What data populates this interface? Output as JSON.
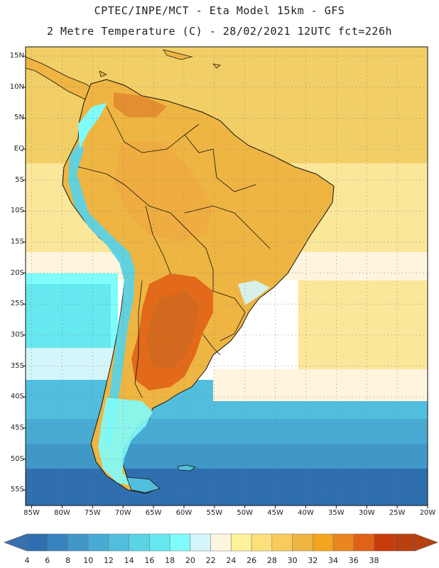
{
  "header": {
    "line1": "CPTEC/INPE/MCT -  Eta Model 15km - GFS",
    "line2": "2 Metre Temperature (C) - 28/02/2021 12UTC fct=226h"
  },
  "axes": {
    "lat_labels": [
      "15N",
      "10N",
      "5N",
      "EQ",
      "5S",
      "10S",
      "15S",
      "20S",
      "25S",
      "30S",
      "35S",
      "40S",
      "45S",
      "50S",
      "55S"
    ],
    "lat_values": [
      15,
      10,
      5,
      0,
      -5,
      -10,
      -15,
      -20,
      -25,
      -30,
      -35,
      -40,
      -45,
      -50,
      -55
    ],
    "lon_labels": [
      "85W",
      "80W",
      "75W",
      "70W",
      "65W",
      "60W",
      "55W",
      "50W",
      "45W",
      "40W",
      "35W",
      "30W",
      "25W",
      "20W"
    ],
    "lon_values": [
      -85,
      -80,
      -75,
      -70,
      -65,
      -60,
      -55,
      -50,
      -45,
      -40,
      -35,
      -30,
      -25,
      -20
    ],
    "lat_range": [
      -57.5,
      16.5
    ],
    "lon_range": [
      -86,
      -20
    ]
  },
  "colorbar": {
    "labels": [
      "4",
      "6",
      "8",
      "10",
      "12",
      "14",
      "16",
      "18",
      "20",
      "22",
      "24",
      "26",
      "28",
      "30",
      "32",
      "34",
      "36",
      "38"
    ],
    "colors": [
      "#2f6faf",
      "#3883be",
      "#3f98c8",
      "#49aad4",
      "#52bedd",
      "#5ad3e5",
      "#66e8f0",
      "#7ffcfc",
      "#d4f6fb",
      "#fff5df",
      "#fef39b",
      "#fce07a",
      "#f7cc5c",
      "#efb542",
      "#f3a51f",
      "#ea8520",
      "#e06216",
      "#c83b0a",
      "#b8400f",
      "#3a6fb0"
    ],
    "under_color": "#3a6fb0",
    "over_color": "#b8400f"
  },
  "map_colors": {
    "ocean_equatorial": "#f2cf66",
    "ocean_mid": "#fbe79a",
    "ocean_subtropical": "#fff5df",
    "ocean_cool": "#52bedd",
    "ocean_cold": "#3f98c8",
    "ocean_polar": "#2f6faf",
    "land_warm": "#efb542",
    "land_hot": "#e08a30",
    "land_very_hot": "#d2691e",
    "andes": "#5ad3e5",
    "patagonia": "#7ffcfc",
    "border": "#111111",
    "grid": "#888888"
  }
}
